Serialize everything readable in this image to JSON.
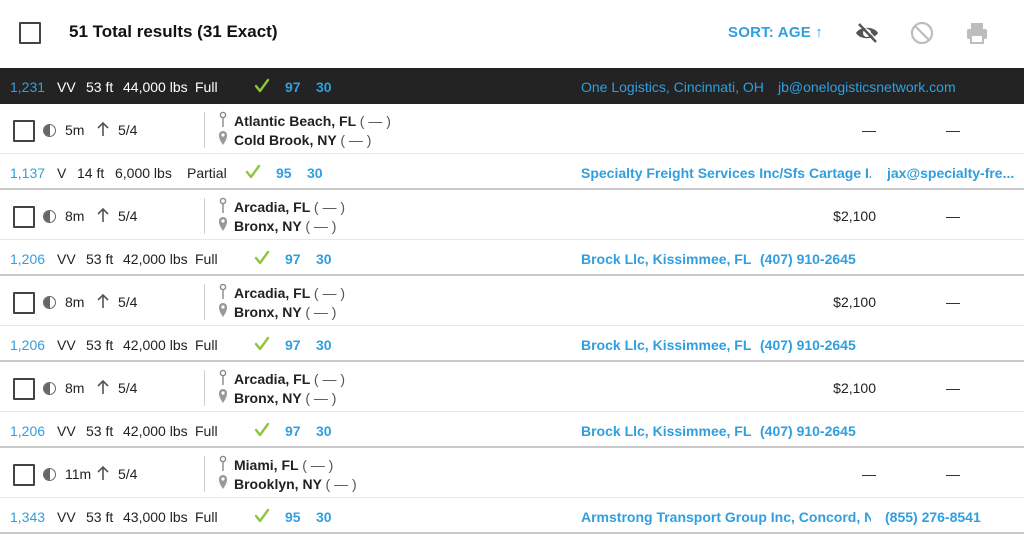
{
  "header": {
    "total": "51 Total results (31 Exact)",
    "sort_label": "SORT: AGE",
    "sort_arrow": "↑",
    "icons": [
      "hide-icon",
      "block-icon",
      "print-icon"
    ]
  },
  "highlight": {
    "id": "1,231",
    "equip": "VV",
    "length": "53 ft",
    "weight": "44,000 lbs",
    "load": "Full",
    "score1": "97",
    "score2": "30",
    "company": "One Logistics, Cincinnati, OH",
    "contact": "jb@onelogisticsnetwork.com"
  },
  "loads": [
    {
      "age": "5m",
      "date": "5/4",
      "origin": "Atlantic Beach, FL",
      "dest": "Cold Brook, NY",
      "dash": "( — )",
      "rate": "—",
      "extra": "—",
      "id": "1,137",
      "equip": "V",
      "length": "14 ft",
      "weight": "6,000 lbs",
      "load": "Partial",
      "score1": "95",
      "score2": "30",
      "company": "Specialty Freight Services Inc/Sfs Cartage I...",
      "contact": "jax@specialty-fre..."
    },
    {
      "age": "8m",
      "date": "5/4",
      "origin": "Arcadia, FL",
      "dest": "Bronx, NY",
      "dash": "( — )",
      "rate": "$2,100",
      "extra": "—",
      "id": "1,206",
      "equip": "VV",
      "length": "53 ft",
      "weight": "42,000 lbs",
      "load": "Full",
      "score1": "97",
      "score2": "30",
      "company": "Brock Llc, Kissimmee, FL",
      "contact": "(407) 910-2645"
    },
    {
      "age": "8m",
      "date": "5/4",
      "origin": "Arcadia, FL",
      "dest": "Bronx, NY",
      "dash": "( — )",
      "rate": "$2,100",
      "extra": "—",
      "id": "1,206",
      "equip": "VV",
      "length": "53 ft",
      "weight": "42,000 lbs",
      "load": "Full",
      "score1": "97",
      "score2": "30",
      "company": "Brock Llc, Kissimmee, FL",
      "contact": "(407) 910-2645"
    },
    {
      "age": "8m",
      "date": "5/4",
      "origin": "Arcadia, FL",
      "dest": "Bronx, NY",
      "dash": "( — )",
      "rate": "$2,100",
      "extra": "—",
      "id": "1,206",
      "equip": "VV",
      "length": "53 ft",
      "weight": "42,000 lbs",
      "load": "Full",
      "score1": "97",
      "score2": "30",
      "company": "Brock Llc, Kissimmee, FL",
      "contact": "(407) 910-2645"
    },
    {
      "age": "11m",
      "date": "5/4",
      "origin": "Miami, FL",
      "dest": "Brooklyn, NY",
      "dash": "( — )",
      "rate": "—",
      "extra": "—",
      "id": "1,343",
      "equip": "VV",
      "length": "53 ft",
      "weight": "43,000 lbs",
      "load": "Full",
      "score1": "95",
      "score2": "30",
      "company": "Armstrong Transport Group Inc, Concord, NC",
      "contact": "(855) 276-8541"
    }
  ],
  "colors": {
    "accent": "#2f9fe0",
    "check": "#8cc63f",
    "dark_row": "#232323"
  }
}
